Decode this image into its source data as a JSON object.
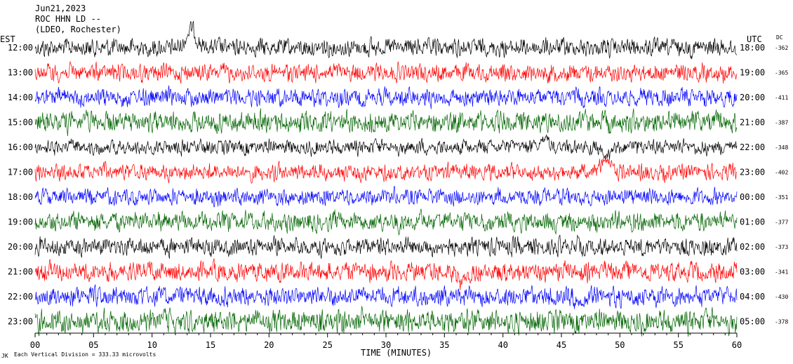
{
  "header": {
    "date": "Jun21,2023",
    "station": "ROC HHN LD --",
    "network": "(LDEO, Rochester)"
  },
  "axes": {
    "left_label": "EST",
    "right_label": "UTC",
    "dc_label": "DC",
    "xlabel": "TIME (MINUTES)",
    "footnote": "Each Vertical Division = 333.33 microvolts",
    "corner_mark": "JK"
  },
  "chart_data": {
    "type": "line",
    "xlabel": "TIME (MINUTES)",
    "xlim": [
      0,
      60
    ],
    "x_ticks": [
      "00",
      "05",
      "10",
      "15",
      "20",
      "25",
      "30",
      "35",
      "40",
      "45",
      "50",
      "55",
      "60"
    ],
    "colors": [
      "#000000",
      "#ff0000",
      "#0000ff",
      "#006400"
    ],
    "rows": [
      {
        "est": "12:00",
        "utc": "18:00",
        "dc": "-362",
        "color": "#000000",
        "amp": 0.55,
        "events": [
          {
            "t": 13.4,
            "h": -1.2
          }
        ]
      },
      {
        "est": "13:00",
        "utc": "19:00",
        "dc": "-365",
        "color": "#ff0000",
        "amp": 0.55,
        "events": []
      },
      {
        "est": "14:00",
        "utc": "20:00",
        "dc": "-411",
        "color": "#0000ff",
        "amp": 0.55,
        "events": []
      },
      {
        "est": "15:00",
        "utc": "21:00",
        "dc": "-387",
        "color": "#006400",
        "amp": 0.65,
        "events": []
      },
      {
        "est": "16:00",
        "utc": "22:00",
        "dc": "-348",
        "color": "#000000",
        "amp": 0.45,
        "events": [
          {
            "t": 43.5,
            "h": -0.4
          },
          {
            "t": 49,
            "h": 0.6
          }
        ]
      },
      {
        "est": "17:00",
        "utc": "23:00",
        "dc": "-402",
        "color": "#ff0000",
        "amp": 0.5,
        "events": [
          {
            "t": 48.8,
            "h": -0.9
          }
        ]
      },
      {
        "est": "18:00",
        "utc": "00:00",
        "dc": "-351",
        "color": "#0000ff",
        "amp": 0.5,
        "events": []
      },
      {
        "est": "19:00",
        "utc": "01:00",
        "dc": "-377",
        "color": "#006400",
        "amp": 0.6,
        "events": []
      },
      {
        "est": "20:00",
        "utc": "02:00",
        "dc": "-373",
        "color": "#000000",
        "amp": 0.55,
        "events": []
      },
      {
        "est": "21:00",
        "utc": "03:00",
        "dc": "-341",
        "color": "#ff0000",
        "amp": 0.6,
        "events": [
          {
            "t": 36.5,
            "h": 0.7
          }
        ]
      },
      {
        "est": "22:00",
        "utc": "04:00",
        "dc": "-430",
        "color": "#0000ff",
        "amp": 0.6,
        "events": [
          {
            "t": 46.8,
            "h": 0.5
          }
        ]
      },
      {
        "est": "23:00",
        "utc": "05:00",
        "dc": "-378",
        "color": "#006400",
        "amp": 0.7,
        "events": []
      }
    ]
  }
}
